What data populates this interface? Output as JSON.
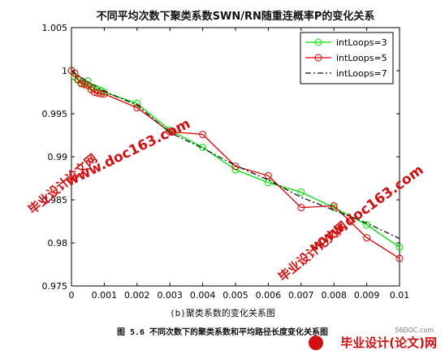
{
  "chart_data": {
    "type": "line",
    "title": "不同平均次数下聚类系数SWN/RN随重连概率P的变化关系",
    "xlabel": "",
    "ylabel": "",
    "xlim": [
      0,
      0.01
    ],
    "ylim": [
      0.975,
      1.005
    ],
    "xticks": [
      "0",
      "0.001",
      "0.002",
      "0.003",
      "0.004",
      "0.005",
      "0.006",
      "0.007",
      "0.008",
      "0.009",
      "0.01"
    ],
    "yticks": [
      "0.975",
      "0.98",
      "0.985",
      "0.99",
      "0.995",
      "1",
      "1.005"
    ],
    "xtick_values": [
      0,
      0.001,
      0.002,
      0.003,
      0.004,
      0.005,
      0.006,
      0.007,
      0.008,
      0.009,
      0.01
    ],
    "ytick_values": [
      0.975,
      0.98,
      0.985,
      0.99,
      0.995,
      1,
      1.005
    ],
    "grid": false,
    "legend_position": "top-right",
    "series": [
      {
        "name": "intLoops=3",
        "color": "#00e000",
        "line": "solid",
        "marker": "circle",
        "x": [
          0,
          0.0001,
          0.0002,
          0.0003,
          0.0004,
          0.0005,
          0.0006,
          0.0007,
          0.0008,
          0.0009,
          0.001,
          0.002,
          0.003,
          0.004,
          0.005,
          0.006,
          0.007,
          0.008,
          0.009,
          0.01
        ],
        "y": [
          1.0,
          0.9993,
          0.9989,
          0.9986,
          0.9985,
          0.9988,
          0.9981,
          0.998,
          0.9978,
          0.9977,
          0.9975,
          0.9962,
          0.9931,
          0.9911,
          0.9885,
          0.987,
          0.9859,
          0.9841,
          0.9821,
          0.9795
        ]
      },
      {
        "name": "intLoops=5",
        "color": "#e00000",
        "line": "solid",
        "marker": "circle",
        "x": [
          0,
          0.0001,
          0.0002,
          0.0003,
          0.0004,
          0.0005,
          0.0006,
          0.0007,
          0.0008,
          0.0009,
          0.001,
          0.002,
          0.003,
          0.004,
          0.005,
          0.006,
          0.007,
          0.008,
          0.009,
          0.01
        ],
        "y": [
          1.0,
          0.9997,
          0.999,
          0.9985,
          0.9984,
          0.9983,
          0.9978,
          0.9975,
          0.9974,
          0.9973,
          0.9973,
          0.9957,
          0.9929,
          0.9926,
          0.9889,
          0.9878,
          0.9841,
          0.9843,
          0.9806,
          0.9782
        ]
      },
      {
        "name": "intLoops=7",
        "color": "#111111",
        "line": "dashdot",
        "marker": "none",
        "x": [
          0,
          0.0005,
          0.001,
          0.002,
          0.003,
          0.004,
          0.005,
          0.006,
          0.007,
          0.008,
          0.009,
          0.01
        ],
        "y": [
          1.0,
          0.9987,
          0.9976,
          0.996,
          0.9928,
          0.991,
          0.989,
          0.9873,
          0.9853,
          0.9838,
          0.9823,
          0.9805
        ]
      }
    ]
  },
  "captions": {
    "subfigure": "(b)聚类系数的变化关系图",
    "figure": "图 5.6 不同次数下的聚类系数和平均路径长度变化关系图"
  },
  "watermarks": {
    "site": "www.doc163.com",
    "brand": "毕业设计论文网",
    "footer_site": "56DOC.com",
    "footer_brand": "毕业设计(论文)网"
  },
  "colors": {
    "axes": "#000000",
    "watermark": "#d01010",
    "background": "#ffffff"
  }
}
